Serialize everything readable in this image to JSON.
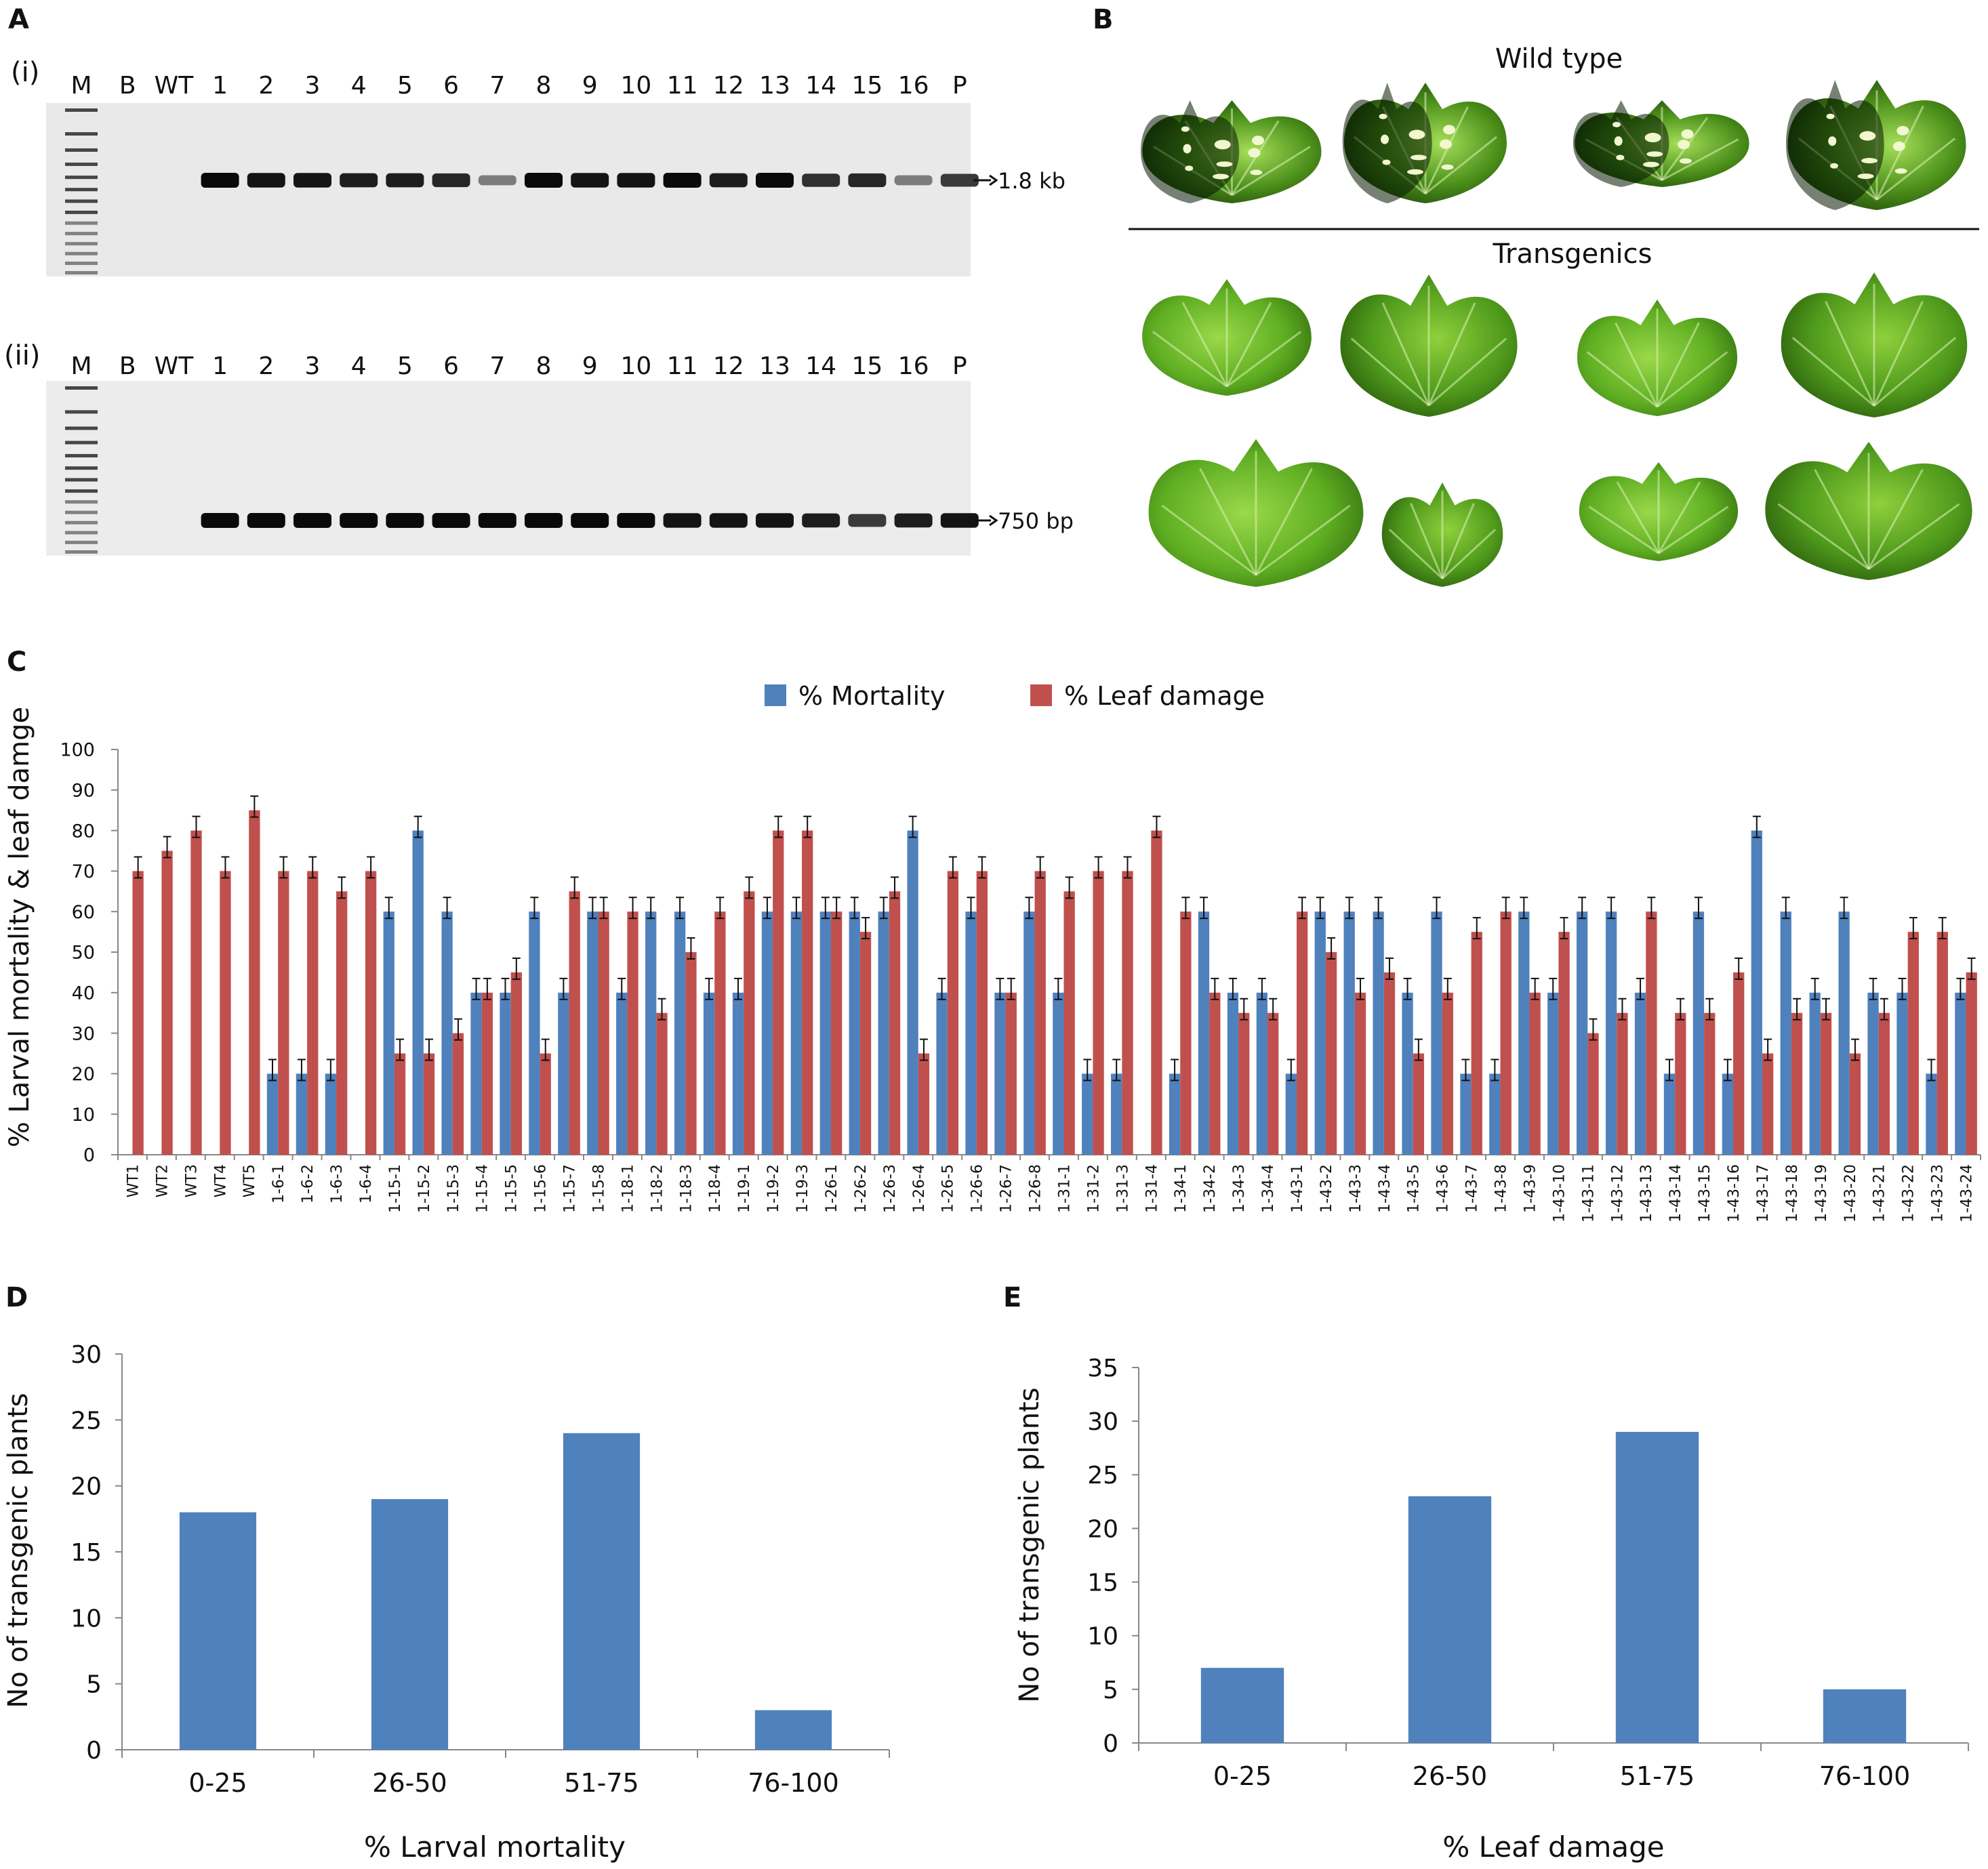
{
  "colors": {
    "mortality": "#4F81BD",
    "damage": "#C0504D",
    "gel_bg": "#e8e8e8",
    "band": "#1a1a1a",
    "leaf_dark": "#2e5e10",
    "leaf_mid": "#4f9a1c",
    "leaf_light": "#8ed13a"
  },
  "panel_a": {
    "label": "A",
    "gels": [
      {
        "sublabel": "(i)",
        "lanes": [
          "M",
          "B",
          "WT",
          "1",
          "2",
          "3",
          "4",
          "5",
          "6",
          "7",
          "8",
          "9",
          "10",
          "11",
          "12",
          "13",
          "14",
          "15",
          "16",
          "P"
        ],
        "band_size": "1.8 kb",
        "band_intensity": [
          0,
          0,
          0,
          1.0,
          0.95,
          0.95,
          0.9,
          0.9,
          0.85,
          0.4,
          1.0,
          0.95,
          0.95,
          1.0,
          0.9,
          1.0,
          0.8,
          0.85,
          0.4,
          0.75
        ]
      },
      {
        "sublabel": "(ii)",
        "lanes": [
          "M",
          "B",
          "WT",
          "1",
          "2",
          "3",
          "4",
          "5",
          "6",
          "7",
          "8",
          "9",
          "10",
          "11",
          "12",
          "13",
          "14",
          "15",
          "16",
          "P"
        ],
        "band_size": "750 bp",
        "band_intensity": [
          0,
          0,
          0,
          1.0,
          1.0,
          1.0,
          1.0,
          1.0,
          1.0,
          1.0,
          1.0,
          1.0,
          1.0,
          0.95,
          0.95,
          0.95,
          0.9,
          0.75,
          0.9,
          0.95
        ]
      }
    ]
  },
  "panel_b": {
    "label": "B",
    "wild_type_title": "Wild type",
    "transgenics_title": "Transgenics",
    "leaves": [
      {
        "group": "Wild type",
        "row": 1,
        "condition": "damaged"
      },
      {
        "group": "Wild type",
        "row": 1,
        "condition": "damaged"
      },
      {
        "group": "Wild type",
        "row": 1,
        "condition": "damaged"
      },
      {
        "group": "Wild type",
        "row": 1,
        "condition": "damaged"
      },
      {
        "group": "Transgenics",
        "row": 2,
        "condition": "healthy"
      },
      {
        "group": "Transgenics",
        "row": 2,
        "condition": "healthy"
      },
      {
        "group": "Transgenics",
        "row": 2,
        "condition": "healthy"
      },
      {
        "group": "Transgenics",
        "row": 2,
        "condition": "healthy"
      },
      {
        "group": "Transgenics",
        "row": 3,
        "condition": "healthy"
      },
      {
        "group": "Transgenics",
        "row": 3,
        "condition": "healthy"
      },
      {
        "group": "Transgenics",
        "row": 3,
        "condition": "healthy"
      },
      {
        "group": "Transgenics",
        "row": 3,
        "condition": "healthy"
      }
    ]
  },
  "chart_data": [
    {
      "id": "C",
      "panel_label": "C",
      "type": "bar",
      "ylabel": "% Larval mortality & leaf damge",
      "xlabel": "",
      "ylim": [
        0,
        100
      ],
      "yticks": [
        0,
        10,
        20,
        30,
        40,
        50,
        60,
        70,
        80,
        90,
        100
      ],
      "legend": [
        "% Mortality",
        "% Leaf damage"
      ],
      "legend_position": "top-center",
      "categories": [
        "WT1",
        "WT2",
        "WT3",
        "WT4",
        "WT5",
        "1-6-1",
        "1-6-2",
        "1-6-3",
        "1-6-4",
        "1-15-1",
        "1-15-2",
        "1-15-3",
        "1-15-4",
        "1-15-5",
        "1-15-6",
        "1-15-7",
        "1-15-8",
        "1-18-1",
        "1-18-2",
        "1-18-3",
        "1-18-4",
        "1-19-1",
        "1-19-2",
        "1-19-3",
        "1-26-1",
        "1-26-2",
        "1-26-3",
        "1-26-4",
        "1-26-5",
        "1-26-6",
        "1-26-7",
        "1-26-8",
        "1-31-1",
        "1-31-2",
        "1-31-3",
        "1-31-4",
        "1-34-1",
        "1-34-2",
        "1-34-3",
        "1-34-4",
        "1-43-1",
        "1-43-2",
        "1-43-3",
        "1-43-4",
        "1-43-5",
        "1-43-6",
        "1-43-7",
        "1-43-8",
        "1-43-9",
        "1-43-10",
        "1-43-11",
        "1-43-12",
        "1-43-13",
        "1-43-14",
        "1-43-15",
        "1-43-16",
        "1-43-17",
        "1-43-18",
        "1-43-19",
        "1-43-20",
        "1-43-21",
        "1-43-22",
        "1-43-23",
        "1-43-24"
      ],
      "series": [
        {
          "name": "% Mortality",
          "values": [
            0,
            0,
            0,
            0,
            0,
            20,
            20,
            20,
            0,
            60,
            80,
            60,
            40,
            40,
            60,
            40,
            60,
            40,
            60,
            60,
            40,
            40,
            60,
            60,
            60,
            60,
            60,
            80,
            40,
            60,
            40,
            60,
            40,
            20,
            20,
            0,
            20,
            60,
            40,
            40,
            20,
            60,
            60,
            60,
            40,
            60,
            20,
            20,
            60,
            40,
            60,
            60,
            40,
            20,
            60,
            20,
            80,
            60,
            40,
            60,
            40,
            40,
            20,
            40
          ]
        },
        {
          "name": "% Leaf damage",
          "values": [
            70,
            75,
            80,
            70,
            85,
            70,
            70,
            65,
            70,
            25,
            25,
            30,
            40,
            45,
            25,
            65,
            60,
            60,
            35,
            50,
            60,
            65,
            80,
            80,
            60,
            55,
            65,
            25,
            70,
            70,
            40,
            70,
            65,
            70,
            70,
            80,
            60,
            40,
            35,
            35,
            60,
            50,
            40,
            45,
            25,
            40,
            55,
            60,
            40,
            55,
            30,
            35,
            60,
            35,
            35,
            45,
            25,
            35,
            35,
            25,
            35,
            55,
            55,
            45
          ]
        }
      ]
    },
    {
      "id": "D",
      "panel_label": "D",
      "type": "bar",
      "ylabel": "No of transgenic plants",
      "xlabel": "% Larval mortality",
      "ylim": [
        0,
        30
      ],
      "yticks": [
        0,
        5,
        10,
        15,
        20,
        25,
        30
      ],
      "categories": [
        "0-25",
        "26-50",
        "51-75",
        "76-100"
      ],
      "values": [
        18,
        19,
        24,
        3
      ]
    },
    {
      "id": "E",
      "panel_label": "E",
      "type": "bar",
      "ylabel": "No of transgenic plants",
      "xlabel": "% Leaf damage",
      "ylim": [
        0,
        35
      ],
      "yticks": [
        0,
        5,
        10,
        15,
        20,
        25,
        30,
        35
      ],
      "categories": [
        "0-25",
        "26-50",
        "51-75",
        "76-100"
      ],
      "values": [
        7,
        23,
        29,
        5
      ]
    }
  ]
}
